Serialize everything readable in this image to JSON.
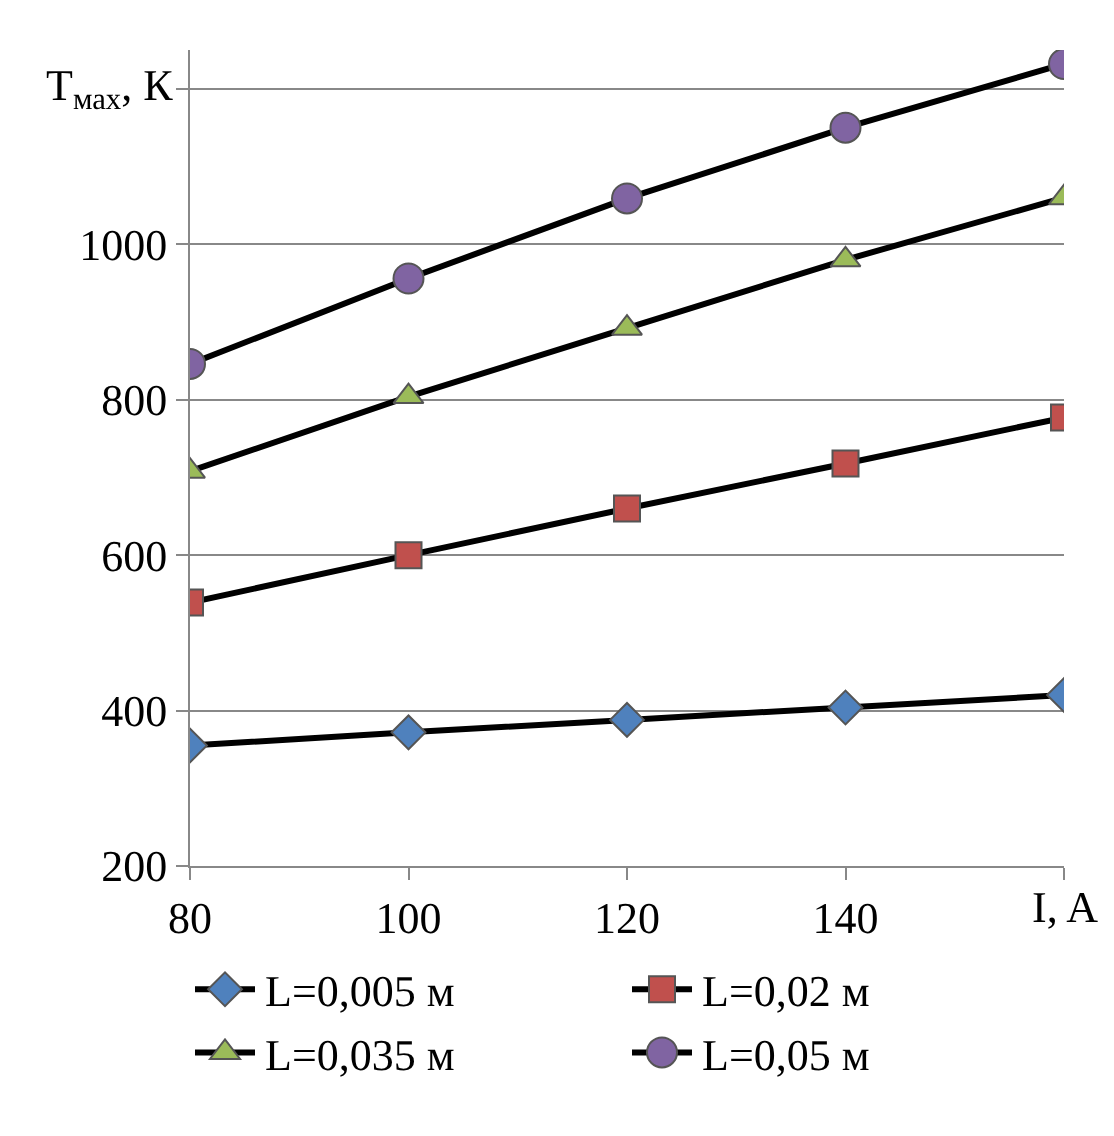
{
  "chart_data": {
    "type": "line",
    "ylabel": "T$_{мах}$, К",
    "xlabel": "I, A",
    "x": [
      80,
      100,
      120,
      140,
      160
    ],
    "xlim": [
      80,
      160
    ],
    "xticks": [
      80,
      100,
      120,
      140,
      {
        "value": 160,
        "label": null
      }
    ],
    "ylim": [
      200,
      1250
    ],
    "yticks": [
      200,
      400,
      600,
      800,
      1000,
      {
        "value": 1200,
        "label": null
      }
    ],
    "grid": "y",
    "legend": "bottom",
    "series": [
      {
        "name": "L=0,005 м",
        "color": "#4f81bd",
        "marker": "diamond",
        "values": [
          355,
          372,
          388,
          404,
          420
        ]
      },
      {
        "name": "L=0,02 м",
        "color": "#c0504d",
        "marker": "square",
        "values": [
          539,
          600,
          660,
          718,
          777
        ]
      },
      {
        "name": "L=0,035 м",
        "color": "#9bbb59",
        "marker": "triangle",
        "values": [
          708,
          804,
          892,
          980,
          1060
        ]
      },
      {
        "name": "L=0,05 м",
        "color": "#8064a2",
        "marker": "circle",
        "values": [
          846,
          956,
          1059,
          1150,
          1232
        ]
      }
    ]
  }
}
